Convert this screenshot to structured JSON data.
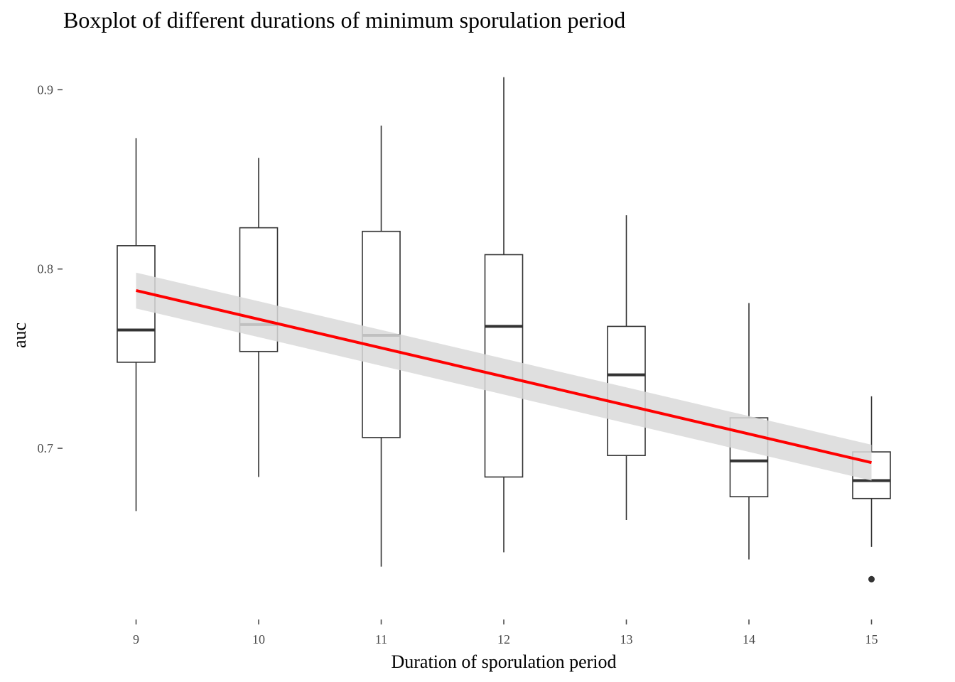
{
  "chart_data": {
    "type": "boxplot",
    "title": "Boxplot of different durations of minimum sporulation period",
    "xlabel": "Duration of sporulation period",
    "ylabel": "auc",
    "categories": [
      "9",
      "10",
      "11",
      "12",
      "13",
      "14",
      "15"
    ],
    "ylim": [
      0.618,
      0.912
    ],
    "yticks": [
      {
        "value": 0.7,
        "label": "0.7"
      },
      {
        "value": 0.8,
        "label": "0.8"
      },
      {
        "value": 0.9,
        "label": "0.9"
      }
    ],
    "boxes": [
      {
        "x": 9,
        "whisker_low": 0.665,
        "q1": 0.748,
        "median": 0.766,
        "q3": 0.813,
        "whisker_high": 0.873,
        "outliers": []
      },
      {
        "x": 10,
        "whisker_low": 0.684,
        "q1": 0.754,
        "median": 0.769,
        "q3": 0.823,
        "whisker_high": 0.862,
        "outliers": []
      },
      {
        "x": 11,
        "whisker_low": 0.634,
        "q1": 0.706,
        "median": 0.763,
        "q3": 0.821,
        "whisker_high": 0.88,
        "outliers": []
      },
      {
        "x": 12,
        "whisker_low": 0.642,
        "q1": 0.684,
        "median": 0.768,
        "q3": 0.808,
        "whisker_high": 0.907,
        "outliers": []
      },
      {
        "x": 13,
        "whisker_low": 0.66,
        "q1": 0.696,
        "median": 0.741,
        "q3": 0.768,
        "whisker_high": 0.83,
        "outliers": []
      },
      {
        "x": 14,
        "whisker_low": 0.638,
        "q1": 0.673,
        "median": 0.693,
        "q3": 0.717,
        "whisker_high": 0.781,
        "outliers": []
      },
      {
        "x": 15,
        "whisker_low": 0.645,
        "q1": 0.672,
        "median": 0.682,
        "q3": 0.698,
        "whisker_high": 0.729,
        "outliers": [
          0.627
        ]
      }
    ],
    "trend_line": {
      "method": "linear",
      "x": [
        9,
        15
      ],
      "y": [
        0.788,
        0.692
      ],
      "ci_upper": [
        0.798,
        0.702
      ],
      "ci_lower": [
        0.778,
        0.682
      ],
      "color": "#ff0000",
      "band_color": "#d9d9d9"
    },
    "grid": false,
    "legend": "none",
    "colors": {
      "box_stroke": "#333333",
      "trend": "#ff0000",
      "band": "#d9d9d9",
      "tick": "#4d4d4d"
    }
  }
}
